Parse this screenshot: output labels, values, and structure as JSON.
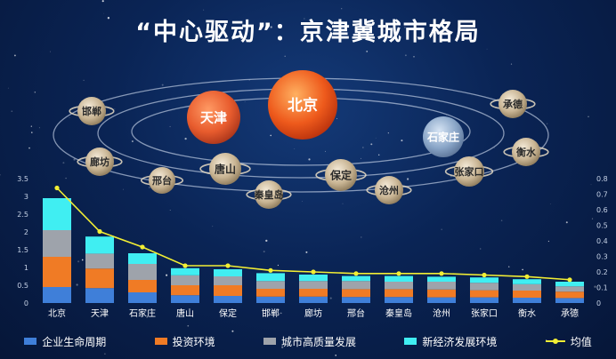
{
  "title": "“中心驱动”：京津冀城市格局",
  "orbit": {
    "center": "北京",
    "planets": [
      "天津",
      "石家庄",
      "唐山",
      "保定",
      "秦皇岛",
      "沧州",
      "张家口",
      "邯郸",
      "廊坊",
      "邢台",
      "承德",
      "衡水"
    ]
  },
  "colors": {
    "enterprise": "#3f7fd9",
    "investment": "#f07b25",
    "quality": "#9ea3ab",
    "new_economy": "#40eef2",
    "average": "#f2ee34"
  },
  "chart_data": {
    "type": "bar",
    "stacked": true,
    "categories": [
      "北京",
      "天津",
      "石家庄",
      "唐山",
      "保定",
      "邯郸",
      "廊坊",
      "邢台",
      "秦皇岛",
      "沧州",
      "张家口",
      "衡水",
      "承德"
    ],
    "series": [
      {
        "name": "企业生命周期",
        "values": [
          0.45,
          0.42,
          0.3,
          0.22,
          0.2,
          0.18,
          0.18,
          0.17,
          0.17,
          0.16,
          0.16,
          0.15,
          0.14
        ]
      },
      {
        "name": "投资环境",
        "values": [
          0.85,
          0.55,
          0.35,
          0.28,
          0.3,
          0.22,
          0.22,
          0.22,
          0.22,
          0.22,
          0.2,
          0.2,
          0.18
        ]
      },
      {
        "name": "城市高质量发展",
        "values": [
          0.75,
          0.42,
          0.45,
          0.28,
          0.25,
          0.22,
          0.22,
          0.23,
          0.21,
          0.22,
          0.21,
          0.18,
          0.15
        ]
      },
      {
        "name": "新经济发展环境",
        "values": [
          0.9,
          0.48,
          0.3,
          0.2,
          0.2,
          0.22,
          0.18,
          0.14,
          0.16,
          0.14,
          0.15,
          0.14,
          0.13
        ]
      }
    ],
    "line": {
      "name": "均值",
      "axis": "right",
      "values": [
        0.74,
        0.46,
        0.36,
        0.24,
        0.24,
        0.21,
        0.2,
        0.19,
        0.19,
        0.19,
        0.18,
        0.17,
        0.15
      ]
    },
    "ylim_left": [
      0,
      3.5
    ],
    "yticks_left": [
      "0",
      "0.5",
      "1",
      "1.5",
      "2",
      "2.5",
      "3",
      "3.5"
    ],
    "ylim_right": [
      0,
      0.8
    ],
    "yticks_right": [
      "0",
      "0.1",
      "0.2",
      "0.3",
      "0.4",
      "0.5",
      "0.6",
      "0.7",
      "0.8"
    ],
    "grid": false,
    "legend_position": "bottom"
  }
}
